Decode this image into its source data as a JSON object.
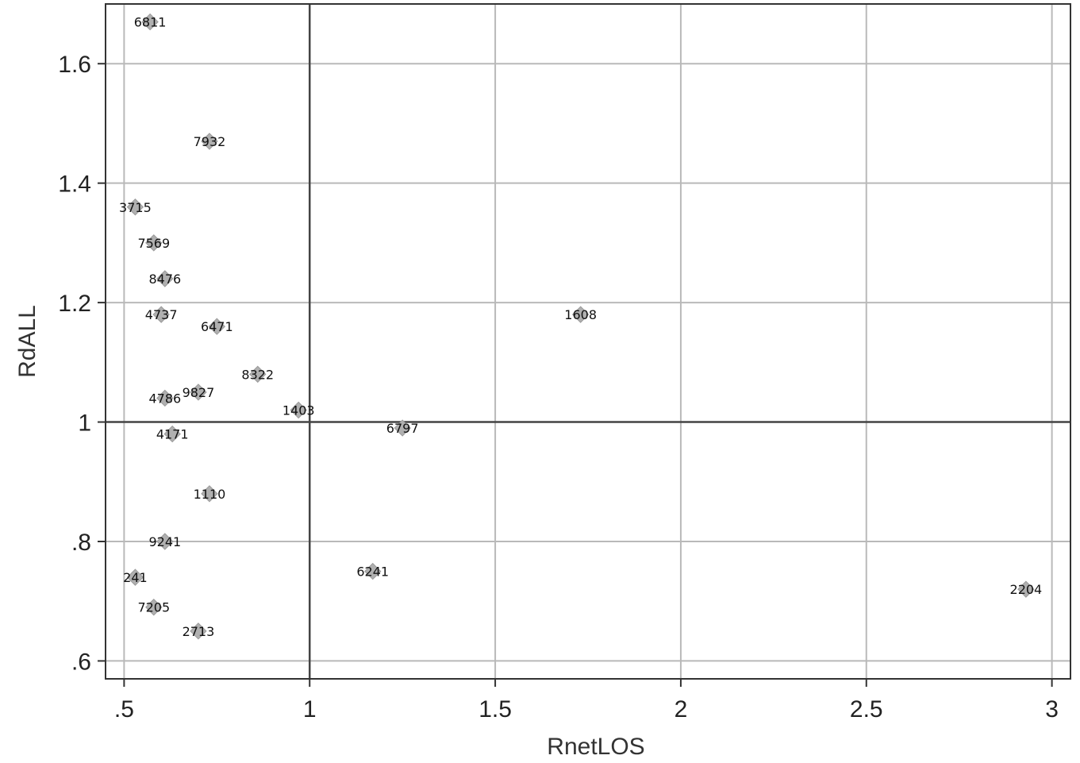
{
  "chart_data": {
    "type": "scatter",
    "title": "",
    "xlabel": "RnetLOS",
    "ylabel": "RdALL",
    "xlim": [
      0.45,
      3.05
    ],
    "ylim": [
      0.57,
      1.7
    ],
    "xticks": [
      0.5,
      1,
      1.5,
      2,
      2.5,
      3
    ],
    "xtick_labels": [
      ".5",
      "1",
      "1.5",
      "2",
      "2.5",
      "3"
    ],
    "yticks": [
      0.6,
      0.8,
      1.0,
      1.2,
      1.4,
      1.6
    ],
    "ytick_labels": [
      ".6",
      ".8",
      "1",
      "1.2",
      "1.4",
      "1.6"
    ],
    "reference_lines": {
      "x": 1,
      "y": 1
    },
    "grid": true,
    "marker": "diamond",
    "marker_color": "#b0b0b0",
    "points": [
      {
        "label": "6811",
        "x": 0.57,
        "y": 1.67
      },
      {
        "label": "7932",
        "x": 0.73,
        "y": 1.47
      },
      {
        "label": "3715",
        "x": 0.53,
        "y": 1.36
      },
      {
        "label": "7569",
        "x": 0.58,
        "y": 1.3
      },
      {
        "label": "8476",
        "x": 0.61,
        "y": 1.24
      },
      {
        "label": "4737",
        "x": 0.6,
        "y": 1.18
      },
      {
        "label": "6471",
        "x": 0.75,
        "y": 1.16
      },
      {
        "label": "1608",
        "x": 1.73,
        "y": 1.18
      },
      {
        "label": "8322",
        "x": 0.86,
        "y": 1.08
      },
      {
        "label": "9827",
        "x": 0.7,
        "y": 1.05
      },
      {
        "label": "4786",
        "x": 0.61,
        "y": 1.04
      },
      {
        "label": "1403",
        "x": 0.97,
        "y": 1.02
      },
      {
        "label": "6797",
        "x": 1.25,
        "y": 0.99
      },
      {
        "label": "4171",
        "x": 0.63,
        "y": 0.98
      },
      {
        "label": "1110",
        "x": 0.73,
        "y": 0.88
      },
      {
        "label": "9241",
        "x": 0.61,
        "y": 0.8
      },
      {
        "label": "241",
        "x": 0.53,
        "y": 0.74
      },
      {
        "label": "6241",
        "x": 1.17,
        "y": 0.75
      },
      {
        "label": "7205",
        "x": 0.58,
        "y": 0.69
      },
      {
        "label": "2713",
        "x": 0.7,
        "y": 0.65
      },
      {
        "label": "2204",
        "x": 2.93,
        "y": 0.72
      }
    ]
  }
}
